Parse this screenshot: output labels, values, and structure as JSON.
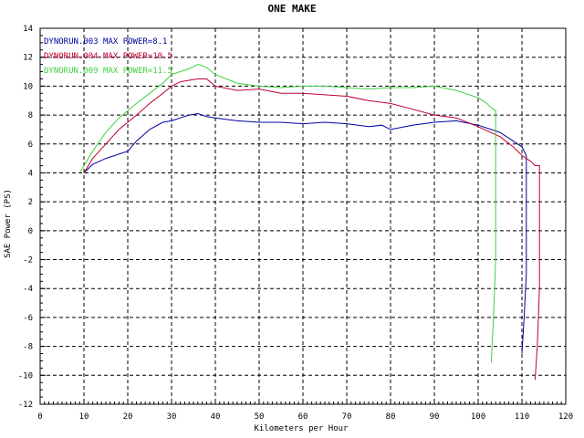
{
  "chart_data": {
    "type": "line",
    "title": "ONE  MAKE",
    "xlabel": "Kilometers per Hour",
    "ylabel": "SAE Power (PS)",
    "xlim": [
      0,
      120
    ],
    "ylim": [
      -12,
      14
    ],
    "xticks": [
      0,
      10,
      20,
      30,
      40,
      50,
      60,
      70,
      80,
      90,
      100,
      110,
      120
    ],
    "yticks": [
      -12,
      -10,
      -8,
      -6,
      -4,
      -2,
      0,
      2,
      4,
      6,
      8,
      10,
      12,
      14
    ],
    "grid": true,
    "legend_position": "top-left",
    "series": [
      {
        "name": "DYNORUN.003",
        "label": "DYNORUN.003  MAX POWER=8.1",
        "color": "#0000a0",
        "x": [
          10,
          12,
          15,
          18,
          20,
          22,
          25,
          28,
          30,
          32,
          34,
          36,
          38,
          40,
          45,
          50,
          55,
          60,
          65,
          70,
          75,
          78,
          80,
          85,
          90,
          95,
          100,
          105,
          108,
          110,
          111,
          111,
          110.5,
          110
        ],
        "y": [
          4.0,
          4.6,
          5.0,
          5.3,
          5.5,
          6.2,
          7.0,
          7.5,
          7.6,
          7.8,
          8.0,
          8.1,
          7.9,
          7.8,
          7.6,
          7.5,
          7.5,
          7.4,
          7.5,
          7.4,
          7.2,
          7.3,
          7.0,
          7.3,
          7.5,
          7.6,
          7.3,
          6.8,
          6.2,
          5.8,
          5.2,
          -3.0,
          -6.0,
          -8.5
        ]
      },
      {
        "name": "DYNORUN.004",
        "label": "DYNORUN.004  MAX POWER=10.5",
        "color": "#c00030",
        "x": [
          10,
          12,
          15,
          18,
          20,
          22,
          25,
          28,
          30,
          32,
          34,
          36,
          38,
          40,
          45,
          50,
          55,
          60,
          65,
          70,
          75,
          80,
          85,
          90,
          95,
          100,
          105,
          108,
          110,
          112,
          113,
          114,
          114,
          113.5,
          113
        ],
        "y": [
          4.0,
          5.0,
          6.0,
          7.0,
          7.5,
          8.0,
          8.8,
          9.5,
          10.0,
          10.3,
          10.4,
          10.5,
          10.5,
          10.0,
          9.7,
          9.8,
          9.5,
          9.5,
          9.4,
          9.3,
          9.0,
          8.8,
          8.4,
          8.0,
          7.8,
          7.2,
          6.5,
          5.8,
          5.2,
          4.8,
          4.5,
          4.5,
          -4.0,
          -8.0,
          -10.3
        ]
      },
      {
        "name": "DYNORUN.009",
        "label": "DYNORUN.009  MAX POWER=11.5",
        "color": "#40d040",
        "x": [
          9,
          12,
          15,
          18,
          20,
          22,
          25,
          28,
          30,
          32,
          34,
          36,
          38,
          40,
          45,
          50,
          55,
          60,
          65,
          70,
          75,
          80,
          85,
          90,
          95,
          100,
          102,
          103,
          104,
          104,
          103.5,
          103
        ],
        "y": [
          4.0,
          5.5,
          6.8,
          7.8,
          8.3,
          8.8,
          9.5,
          10.2,
          10.8,
          11.0,
          11.2,
          11.5,
          11.3,
          10.8,
          10.2,
          10.0,
          9.9,
          10.0,
          10.0,
          9.9,
          9.8,
          9.9,
          9.9,
          10.0,
          9.7,
          9.2,
          8.8,
          8.5,
          8.3,
          -2.0,
          -6.0,
          -9.1
        ]
      }
    ]
  }
}
